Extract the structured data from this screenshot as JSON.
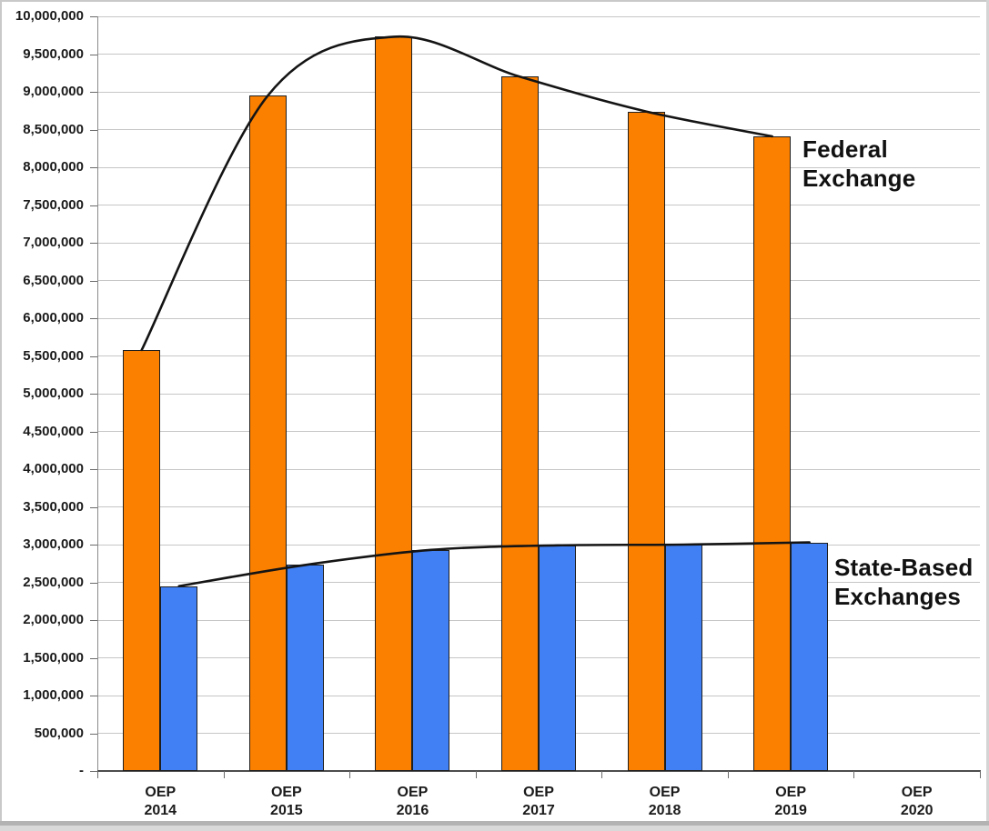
{
  "chart_data": {
    "type": "bar",
    "title": "",
    "xlabel": "",
    "ylabel": "",
    "categories": [
      "OEP 2014",
      "OEP 2015",
      "OEP 2016",
      "OEP 2017",
      "OEP 2018",
      "OEP 2019",
      "OEP 2020"
    ],
    "series": [
      {
        "name": "Federal Exchange",
        "color": "#FC8000",
        "border_color": "#1f1f1f",
        "values": [
          5580000,
          8950000,
          9730000,
          9200000,
          8740000,
          8410000,
          null
        ]
      },
      {
        "name": "State-Based Exchanges",
        "color": "#4080F4",
        "border_color": "#1f1f1f",
        "values": [
          2450000,
          2730000,
          2930000,
          2990000,
          3000000,
          3030000,
          null
        ]
      }
    ],
    "trend_lines": [
      {
        "series": "Federal Exchange",
        "color": "#141414"
      },
      {
        "series": "State-Based Exchanges",
        "color": "#141414"
      }
    ],
    "annotations": [
      {
        "text": "Federal\nExchange",
        "target": "Federal Exchange"
      },
      {
        "text": "State-Based\nExchanges",
        "target": "State-Based Exchanges"
      }
    ],
    "ylim": [
      0,
      10000000
    ],
    "y_step": 500000,
    "y_tick_labels": [
      "10,000,000",
      "9,500,000",
      "9,000,000",
      "8,500,000",
      "8,000,000",
      "7,500,000",
      "7,000,000",
      "6,500,000",
      "6,000,000",
      "5,500,000",
      "5,000,000",
      "4,500,000",
      "4,000,000",
      "3,500,000",
      "3,000,000",
      "2,500,000",
      "2,000,000",
      "1,500,000",
      "1,000,000",
      "500,000",
      "-"
    ],
    "grid": true,
    "legend": "none",
    "grid_color": "#c6c6c6",
    "axis_color": "#4d4d4d"
  }
}
